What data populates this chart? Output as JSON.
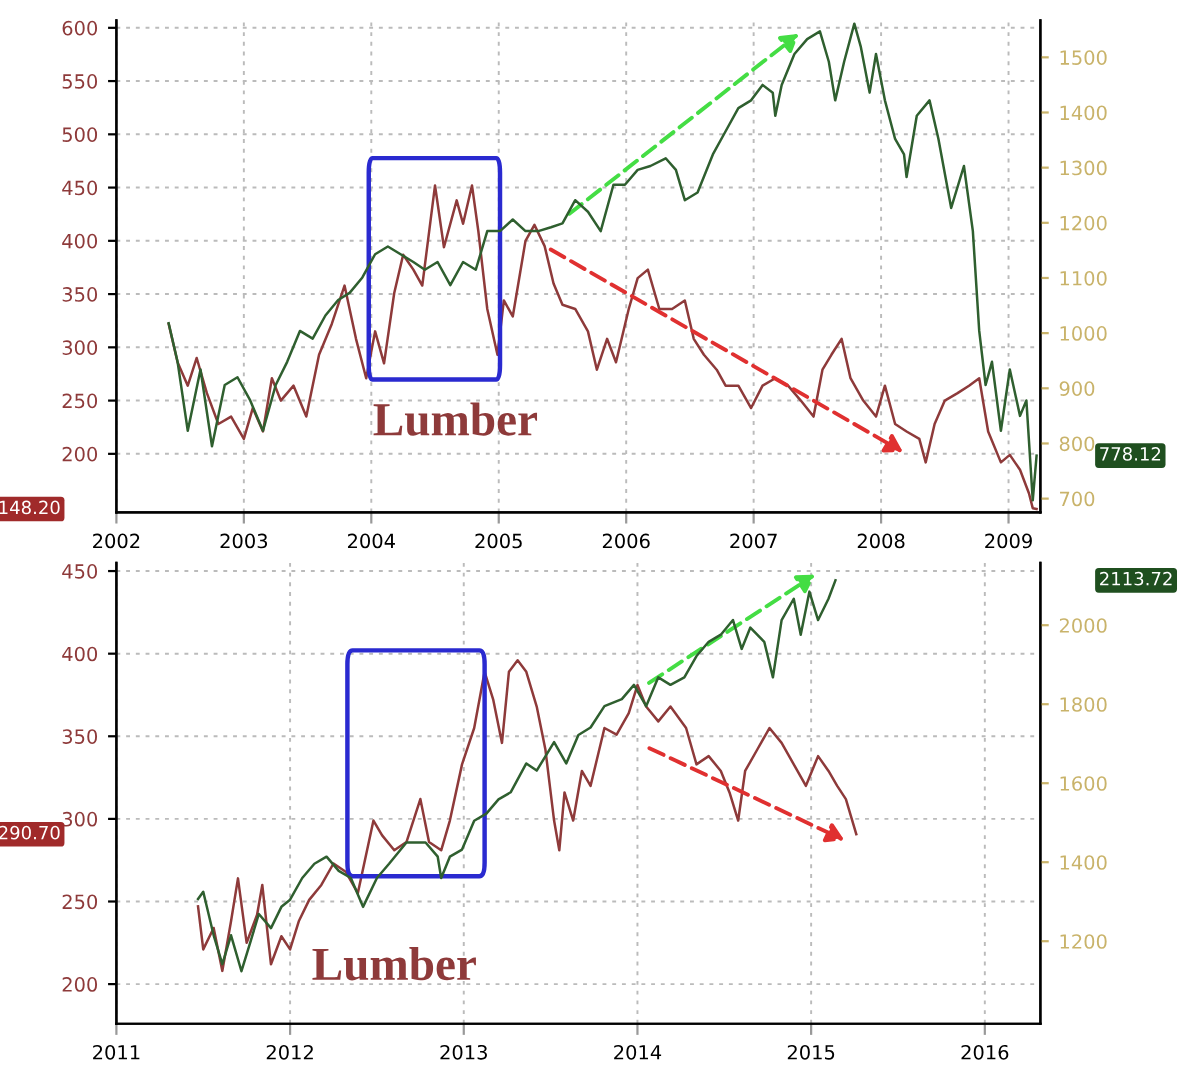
{
  "chart_data": [
    {
      "type": "line",
      "xlim": [
        2002,
        2009.25
      ],
      "ylim": [
        145,
        607
      ],
      "y2lim": [
        675,
        1567
      ],
      "xticks": [
        2002,
        2003,
        2004,
        2005,
        2006,
        2007,
        2008,
        2009
      ],
      "yticks": [
        200,
        250,
        300,
        350,
        400,
        450,
        500,
        550,
        600
      ],
      "y2ticks": [
        700,
        800,
        900,
        1000,
        1100,
        1200,
        1300,
        1400,
        1500
      ],
      "grid": true,
      "series": [
        {
          "name": "Lumber",
          "color": "#8e3a3a",
          "x": [
            2002.41,
            2002.48,
            2002.56,
            2002.63,
            2002.71,
            2002.8,
            2002.9,
            2003.0,
            2003.07,
            2003.15,
            2003.22,
            2003.29,
            2003.39,
            2003.49,
            2003.59,
            2003.69,
            2003.79,
            2003.88,
            2003.96,
            2004.03,
            2004.1,
            2004.18,
            2004.25,
            2004.33,
            2004.4,
            2004.5,
            2004.57,
            2004.67,
            2004.72,
            2004.79,
            2004.84,
            2004.91,
            2004.99,
            2005.04,
            2005.11,
            2005.21,
            2005.28,
            2005.36,
            2005.43,
            2005.5,
            2005.6,
            2005.7,
            2005.77,
            2005.85,
            2005.92,
            2006.02,
            2006.09,
            2006.17,
            2006.26,
            2006.36,
            2006.46,
            2006.53,
            2006.61,
            2006.71,
            2006.78,
            2006.88,
            2006.98,
            2007.07,
            2007.17,
            2007.27,
            2007.37,
            2007.47,
            2007.54,
            2007.61,
            2007.69,
            2007.76,
            2007.86,
            2007.96,
            2008.03,
            2008.11,
            2008.2,
            2008.3,
            2008.35,
            2008.42,
            2008.5,
            2008.6,
            2008.69,
            2008.77,
            2008.84,
            2008.94,
            2009.01,
            2009.09,
            2009.16,
            2009.19,
            2009.22
          ],
          "values": [
            322,
            286,
            264,
            290,
            257,
            228,
            235,
            214,
            243,
            221,
            271,
            250,
            264,
            235,
            293,
            322,
            358,
            308,
            271,
            315,
            285,
            351,
            387,
            373,
            358,
            452,
            394,
            438,
            416,
            452,
            409,
            336,
            293,
            344,
            329,
            400,
            415,
            395,
            360,
            340,
            336,
            315,
            279,
            308,
            286,
            336,
            365,
            373,
            336,
            336,
            344,
            308,
            293,
            279,
            264,
            264,
            243,
            264,
            271,
            264,
            250,
            235,
            279,
            293,
            308,
            271,
            250,
            235,
            264,
            228,
            221,
            214,
            192,
            228,
            250,
            257,
            264,
            271,
            221,
            192,
            199,
            185,
            163,
            149,
            148.2
          ]
        },
        {
          "color": "#2f5f2f",
          "axis": "y2",
          "x": [
            2002.41,
            2002.48,
            2002.56,
            2002.66,
            2002.75,
            2002.85,
            2002.95,
            2003.05,
            2003.15,
            2003.25,
            2003.34,
            2003.44,
            2003.54,
            2003.64,
            2003.74,
            2003.83,
            2003.93,
            2004.03,
            2004.13,
            2004.23,
            2004.33,
            2004.42,
            2004.52,
            2004.62,
            2004.72,
            2004.82,
            2004.91,
            2005.01,
            2005.11,
            2005.21,
            2005.31,
            2005.41,
            2005.5,
            2005.6,
            2005.7,
            2005.8,
            2005.9,
            2005.99,
            2006.09,
            2006.19,
            2006.31,
            2006.39,
            2006.46,
            2006.56,
            2006.68,
            2006.78,
            2006.88,
            2006.98,
            2007.07,
            2007.15,
            2007.17,
            2007.22,
            2007.32,
            2007.42,
            2007.52,
            2007.59,
            2007.64,
            2007.71,
            2007.79,
            2007.84,
            2007.91,
            2007.96,
            2008.03,
            2008.11,
            2008.18,
            2008.2,
            2008.28,
            2008.38,
            2008.45,
            2008.55,
            2008.65,
            2008.72,
            2008.77,
            2008.82,
            2008.87,
            2008.94,
            2009.01,
            2009.09,
            2009.14,
            2009.19,
            2009.22
          ],
          "values": [
            1018,
            948,
            823,
            934,
            795,
            906,
            920,
            878,
            823,
            906,
            948,
            1004,
            990,
            1032,
            1060,
            1073,
            1101,
            1143,
            1157,
            1143,
            1129,
            1115,
            1129,
            1087,
            1129,
            1115,
            1185,
            1185,
            1206,
            1185,
            1185,
            1192,
            1199,
            1241,
            1220,
            1185,
            1269,
            1269,
            1296,
            1303,
            1317,
            1296,
            1241,
            1255,
            1324,
            1366,
            1408,
            1422,
            1450,
            1436,
            1394,
            1450,
            1506,
            1533,
            1547,
            1492,
            1422,
            1492,
            1561,
            1520,
            1436,
            1506,
            1422,
            1352,
            1324,
            1283,
            1394,
            1422,
            1352,
            1227,
            1303,
            1185,
            1004,
            906,
            948,
            823,
            934,
            850,
            878,
            697,
            778.12
          ]
        }
      ],
      "annotations": [
        "148.20",
        "778.12"
      ]
    },
    {
      "type": "line",
      "xlim": [
        2011,
        2016.32
      ],
      "ylim": [
        176,
        455
      ],
      "y2lim": [
        991,
        2158
      ],
      "xticks": [
        2011,
        2012,
        2013,
        2014,
        2015,
        2016
      ],
      "yticks": [
        200,
        250,
        300,
        350,
        400,
        450
      ],
      "y2ticks": [
        1200,
        1400,
        1600,
        1800,
        2000
      ],
      "grid": true,
      "series": [
        {
          "name": "Lumber",
          "color": "#8e3a3a",
          "x": [
            2011.47,
            2011.5,
            2011.56,
            2011.61,
            2011.66,
            2011.7,
            2011.75,
            2011.81,
            2011.84,
            2011.89,
            2011.95,
            2012.0,
            2012.05,
            2012.11,
            2012.18,
            2012.25,
            2012.32,
            2012.39,
            2012.48,
            2012.53,
            2012.6,
            2012.67,
            2012.75,
            2012.8,
            2012.87,
            2012.92,
            2012.99,
            2013.06,
            2013.12,
            2013.17,
            2013.22,
            2013.26,
            2013.31,
            2013.36,
            2013.42,
            2013.47,
            2013.52,
            2013.55,
            2013.58,
            2013.63,
            2013.68,
            2013.73,
            2013.81,
            2013.88,
            2013.95,
            2014.0,
            2014.05,
            2014.12,
            2014.19,
            2014.28,
            2014.34,
            2014.41,
            2014.48,
            2014.53,
            2014.58,
            2014.62,
            2014.69,
            2014.76,
            2014.83,
            2014.9,
            2014.97,
            2015.04,
            2015.1,
            2015.15,
            2015.2,
            2015.26
          ],
          "values": [
            247,
            221,
            234,
            208,
            238,
            264,
            225,
            242,
            260,
            212,
            229,
            221,
            238,
            251,
            260,
            273,
            268,
            255,
            299,
            290,
            281,
            286,
            312,
            286,
            281,
            299,
            333,
            355,
            389,
            372,
            346,
            389,
            396,
            389,
            368,
            342,
            299,
            281,
            316,
            299,
            329,
            320,
            355,
            351,
            364,
            381,
            368,
            359,
            368,
            355,
            333,
            338,
            329,
            316,
            299,
            329,
            342,
            355,
            346,
            333,
            320,
            338,
            329,
            320,
            312,
            290.7
          ]
        },
        {
          "color": "#2f5f2f",
          "axis": "y2",
          "x": [
            2011.47,
            2011.5,
            2011.56,
            2011.61,
            2011.66,
            2011.72,
            2011.77,
            2011.82,
            2011.89,
            2011.95,
            2012.0,
            2012.07,
            2012.14,
            2012.21,
            2012.28,
            2012.35,
            2012.42,
            2012.5,
            2012.57,
            2012.67,
            2012.78,
            2012.85,
            2012.87,
            2012.92,
            2012.99,
            2013.06,
            2013.13,
            2013.2,
            2013.27,
            2013.36,
            2013.42,
            2013.47,
            2013.52,
            2013.59,
            2013.66,
            2013.73,
            2013.81,
            2013.91,
            2013.98,
            2014.05,
            2014.12,
            2014.19,
            2014.27,
            2014.34,
            2014.41,
            2014.48,
            2014.55,
            2014.6,
            2014.65,
            2014.73,
            2014.78,
            2014.83,
            2014.9,
            2014.94,
            2014.99,
            2015.04,
            2015.1,
            2015.14
          ],
          "values": [
            1307,
            1325,
            1215,
            1142,
            1215,
            1124,
            1196,
            1269,
            1233,
            1287,
            1305,
            1360,
            1396,
            1414,
            1378,
            1360,
            1287,
            1360,
            1396,
            1450,
            1450,
            1414,
            1360,
            1414,
            1432,
            1505,
            1523,
            1559,
            1577,
            1650,
            1632,
            1668,
            1704,
            1650,
            1722,
            1741,
            1795,
            1813,
            1849,
            1795,
            1868,
            1849,
            1868,
            1922,
            1958,
            1976,
            2013,
            1940,
            1994,
            1958,
            1868,
            2013,
            2067,
            1976,
            2085,
            2013,
            2067,
            2113.72
          ]
        }
      ],
      "annotations": [
        "290.70",
        "2113.72"
      ]
    }
  ]
}
